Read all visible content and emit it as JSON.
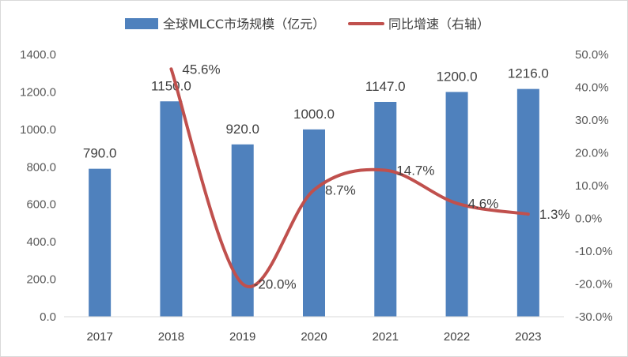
{
  "chart_data": {
    "type": "bar",
    "categories": [
      "2017",
      "2018",
      "2019",
      "2020",
      "2021",
      "2022",
      "2023"
    ],
    "series": [
      {
        "name": "全球MLCC市场规模（亿元）",
        "type": "bar",
        "axis": "left",
        "values": [
          790.0,
          1150.0,
          920.0,
          1000.0,
          1147.0,
          1200.0,
          1216.0
        ],
        "labels": [
          "790.0",
          "1150.0",
          "920.0",
          "1000.0",
          "1147.0",
          "1200.0",
          "1216.0"
        ],
        "color": "#4f81bd"
      },
      {
        "name": "同比增速（右轴）",
        "type": "line",
        "axis": "right",
        "smooth": true,
        "values": [
          null,
          45.6,
          -20.0,
          8.7,
          14.7,
          4.6,
          1.3
        ],
        "labels": [
          null,
          "45.6%",
          "-20.0%",
          "8.7%",
          "14.7%",
          "4.6%",
          "1.3%"
        ],
        "color": "#c0504d"
      }
    ],
    "y_left": {
      "min": 0,
      "max": 1400,
      "step": 200,
      "ticks": [
        "0.0",
        "200.0",
        "400.0",
        "600.0",
        "800.0",
        "1000.0",
        "1200.0",
        "1400.0"
      ]
    },
    "y_right": {
      "min": -30,
      "max": 50,
      "step": 10,
      "ticks": [
        "-30.0%",
        "-20.0%",
        "-10.0%",
        "0.0%",
        "10.0%",
        "20.0%",
        "30.0%",
        "40.0%",
        "50.0%"
      ]
    },
    "grid": false,
    "legend_position": "top-center"
  }
}
